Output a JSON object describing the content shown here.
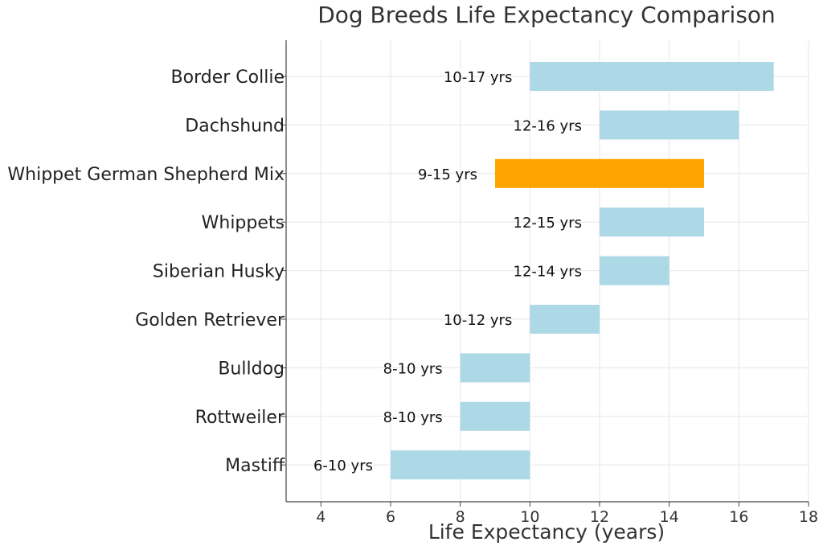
{
  "chart_data": {
    "type": "bar",
    "orientation": "horizontal",
    "title": "Dog Breeds Life Expectancy Comparison",
    "xlabel": "Life Expectancy (years)",
    "ylabel": "",
    "xlim": [
      3,
      18
    ],
    "xticks": [
      4,
      6,
      8,
      10,
      12,
      14,
      16,
      18
    ],
    "grid": true,
    "categories": [
      "Border Collie",
      "Dachshund",
      "Whippet German Shepherd Mix",
      "Whippets",
      "Siberian Husky",
      "Golden Retriever",
      "Bulldog",
      "Rottweiler",
      "Mastiff"
    ],
    "ranges": [
      [
        10,
        17
      ],
      [
        12,
        16
      ],
      [
        9,
        15
      ],
      [
        12,
        15
      ],
      [
        12,
        14
      ],
      [
        10,
        12
      ],
      [
        8,
        10
      ],
      [
        8,
        10
      ],
      [
        6,
        10
      ]
    ],
    "labels": [
      "10-17 yrs",
      "12-16 yrs",
      "9-15 yrs",
      "12-15 yrs",
      "12-14 yrs",
      "10-12 yrs",
      "8-10 yrs",
      "8-10 yrs",
      "6-10 yrs"
    ],
    "highlight_index": 2,
    "colors": {
      "bar": "#add8e6",
      "highlight": "#ffa500",
      "grid": "#e6e6e6",
      "axis": "#444444"
    }
  }
}
